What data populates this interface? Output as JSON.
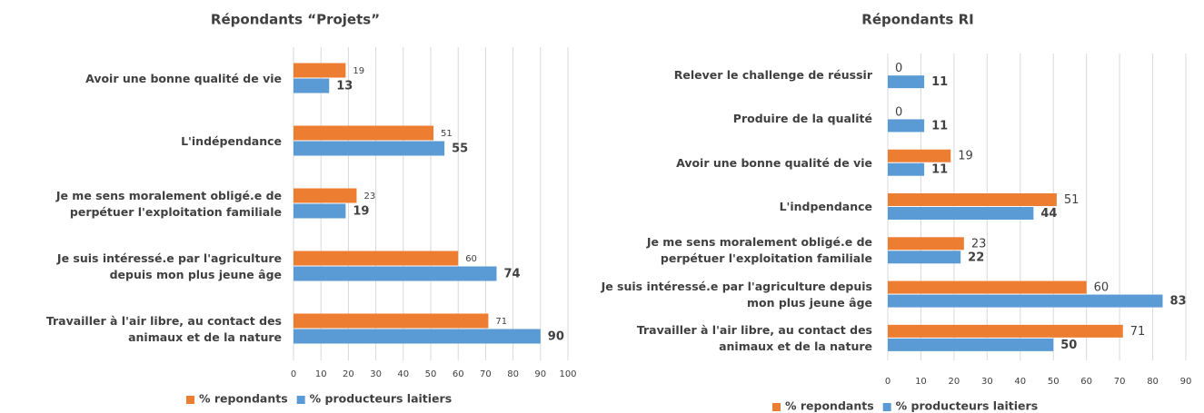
{
  "chart_data": [
    {
      "type": "bar",
      "orientation": "horizontal",
      "title": "Répondants “Projets”",
      "categories": [
        "Avoir une bonne qualité de vie",
        "L'indépendance",
        "Je me sens moralement obligé.e de perpétuer l'exploitation familiale",
        "Je suis intéressé.e par l'agriculture depuis mon plus jeune âge",
        "Travailler à l'air libre, au contact des animaux et de la nature"
      ],
      "series": [
        {
          "name": "% repondants",
          "color": "#ed7d31",
          "values": [
            19,
            51,
            23,
            60,
            71
          ]
        },
        {
          "name": "% producteurs laitiers",
          "color": "#5b9bd5",
          "values": [
            13,
            55,
            19,
            74,
            90
          ]
        }
      ],
      "xlim": [
        0,
        100
      ],
      "xticks": [
        0,
        10,
        20,
        30,
        40,
        50,
        60,
        70,
        80,
        90,
        100
      ],
      "grid": true,
      "legend": "bottom"
    },
    {
      "type": "bar",
      "orientation": "horizontal",
      "title": "Répondants RI",
      "categories": [
        "Relever le challenge de réussir",
        "Produire de la qualité",
        "Avoir une bonne qualité de vie",
        "L'indpendance",
        "Je me sens moralement obligé.e de perpétuer l'exploitation familiale",
        "Je suis intéressé.e par l'agriculture depuis mon plus jeune âge",
        "Travailler à l'air libre, au contact des animaux et de la nature"
      ],
      "series": [
        {
          "name": "% repondants",
          "color": "#ed7d31",
          "values": [
            0,
            0,
            19,
            51,
            23,
            60,
            71
          ]
        },
        {
          "name": "% producteurs laitiers",
          "color": "#5b9bd5",
          "values": [
            11,
            11,
            11,
            44,
            22,
            83,
            50
          ]
        }
      ],
      "xlim": [
        0,
        90
      ],
      "xticks": [
        0,
        10,
        20,
        30,
        40,
        50,
        60,
        70,
        80,
        90
      ],
      "grid": true,
      "legend": "bottom"
    }
  ]
}
